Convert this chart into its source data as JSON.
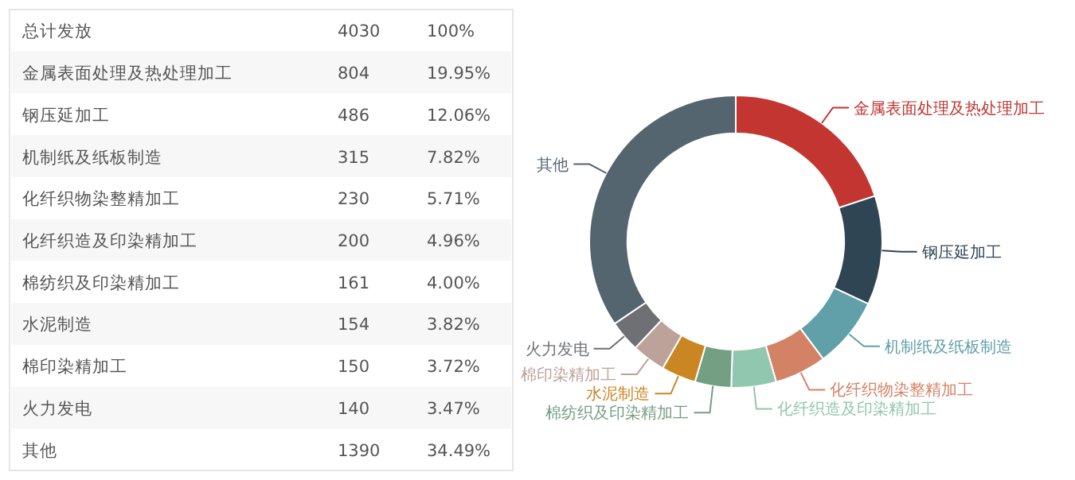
{
  "chart_data": [
    {
      "type": "other",
      "annotations": [
        "总计发放",
        "4030",
        "100%",
        "金属表面处理及热处理加工",
        "804",
        "19.95%",
        "钢压延加工",
        "486",
        "12.06%",
        "机制纸及纸板制造",
        "315",
        "7.82%",
        "化纤织物染整精加工",
        "230",
        "5.71%",
        "化纤织造及印染精加工",
        "200",
        "4.96%",
        "棉纺织及印染精加工",
        "161",
        "4.00%",
        "水泥制造",
        "154",
        "3.82%",
        "棉印染精加工",
        "150",
        "3.72%",
        "火力发电",
        "140",
        "3.47%",
        "其他",
        "1390",
        "34.49%"
      ]
    },
    {
      "type": "donut",
      "categories": [
        "金属表面处理及热处理加工",
        "钢压延加工",
        "机制纸及纸板制造",
        "化纤织物染整精加工",
        "化纤织造及印染精加工",
        "棉纺织及印染精加工",
        "水泥制造",
        "棉印染精加工",
        "火力发电",
        "其他"
      ],
      "values": [
        19.95,
        12.06,
        7.82,
        5.71,
        4.96,
        4.0,
        3.82,
        3.72,
        3.47,
        34.49
      ],
      "colors": [
        "#c23531",
        "#2f4554",
        "#61a0a8",
        "#d48265",
        "#91c7ae",
        "#749f83",
        "#ca8622",
        "#bda29a",
        "#6e7074",
        "#546570"
      ]
    }
  ]
}
